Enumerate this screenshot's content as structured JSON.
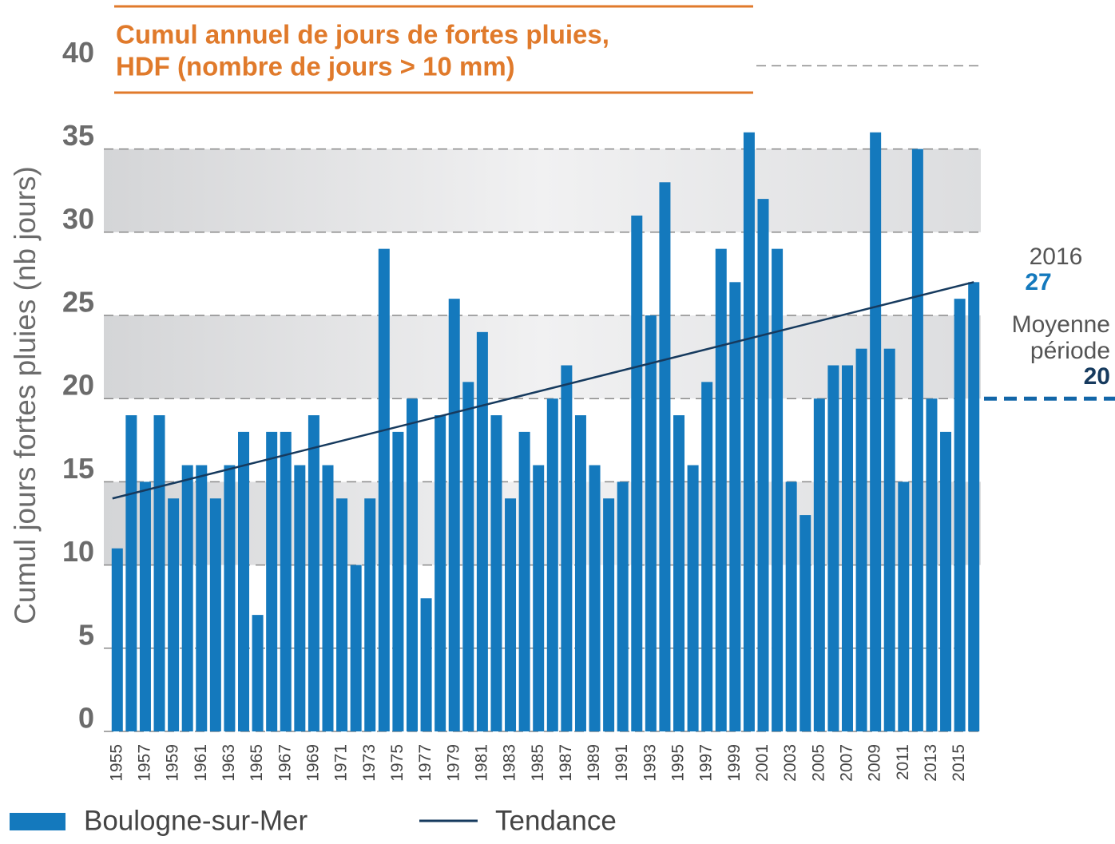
{
  "chart_data": {
    "type": "bar",
    "title": [
      "Cumul annuel de jours de fortes pluies,",
      "HDF (nombre de jours > 10 mm)"
    ],
    "ylabel": "Cumul jours fortes pluies (nb jours)",
    "categories": [
      "1955",
      null,
      "1957",
      null,
      "1959",
      null,
      "1961",
      null,
      "1963",
      null,
      "1965",
      null,
      "1967",
      null,
      "1969",
      null,
      "1971",
      null,
      "1973",
      null,
      "1975",
      null,
      "1977",
      null,
      "1979",
      null,
      "1981",
      null,
      "1983",
      null,
      "1985",
      null,
      "1987",
      null,
      "1989",
      null,
      "1991",
      null,
      "1993",
      null,
      "1995",
      null,
      "1997",
      null,
      "1999",
      null,
      "2001",
      null,
      "2003",
      null,
      "2005",
      null,
      "2007",
      null,
      "2009",
      null,
      "2011",
      null,
      "2013",
      null,
      "2015",
      null
    ],
    "series": [
      {
        "name": "Boulogne-sur-Mer",
        "color": "#1479bd",
        "values": [
          11,
          19,
          15,
          19,
          14,
          16,
          16,
          14,
          16,
          18,
          7,
          18,
          18,
          16,
          19,
          16,
          14,
          10,
          14,
          29,
          18,
          20,
          8,
          19,
          26,
          21,
          24,
          19,
          14,
          18,
          16,
          20,
          22,
          19,
          16,
          14,
          15,
          31,
          25,
          33,
          19,
          16,
          21,
          29,
          27,
          36,
          32,
          29,
          15,
          13,
          20,
          22,
          22,
          23,
          36,
          23,
          15,
          35,
          20,
          18,
          26,
          27
        ]
      }
    ],
    "trend": {
      "name": "Tendance",
      "color": "#163a5e",
      "start": 14,
      "end": 27
    },
    "annotation": {
      "year": "2016",
      "value": 27
    },
    "mean": {
      "label": [
        "Moyenne",
        "période"
      ],
      "value": 20
    },
    "shaded_bands": [
      [
        30,
        35
      ],
      [
        20,
        25
      ],
      [
        10,
        15
      ]
    ],
    "ylim": [
      0,
      40
    ],
    "yticks": [
      0,
      5,
      10,
      15,
      20,
      25,
      30,
      35,
      40
    ],
    "grid": true
  }
}
